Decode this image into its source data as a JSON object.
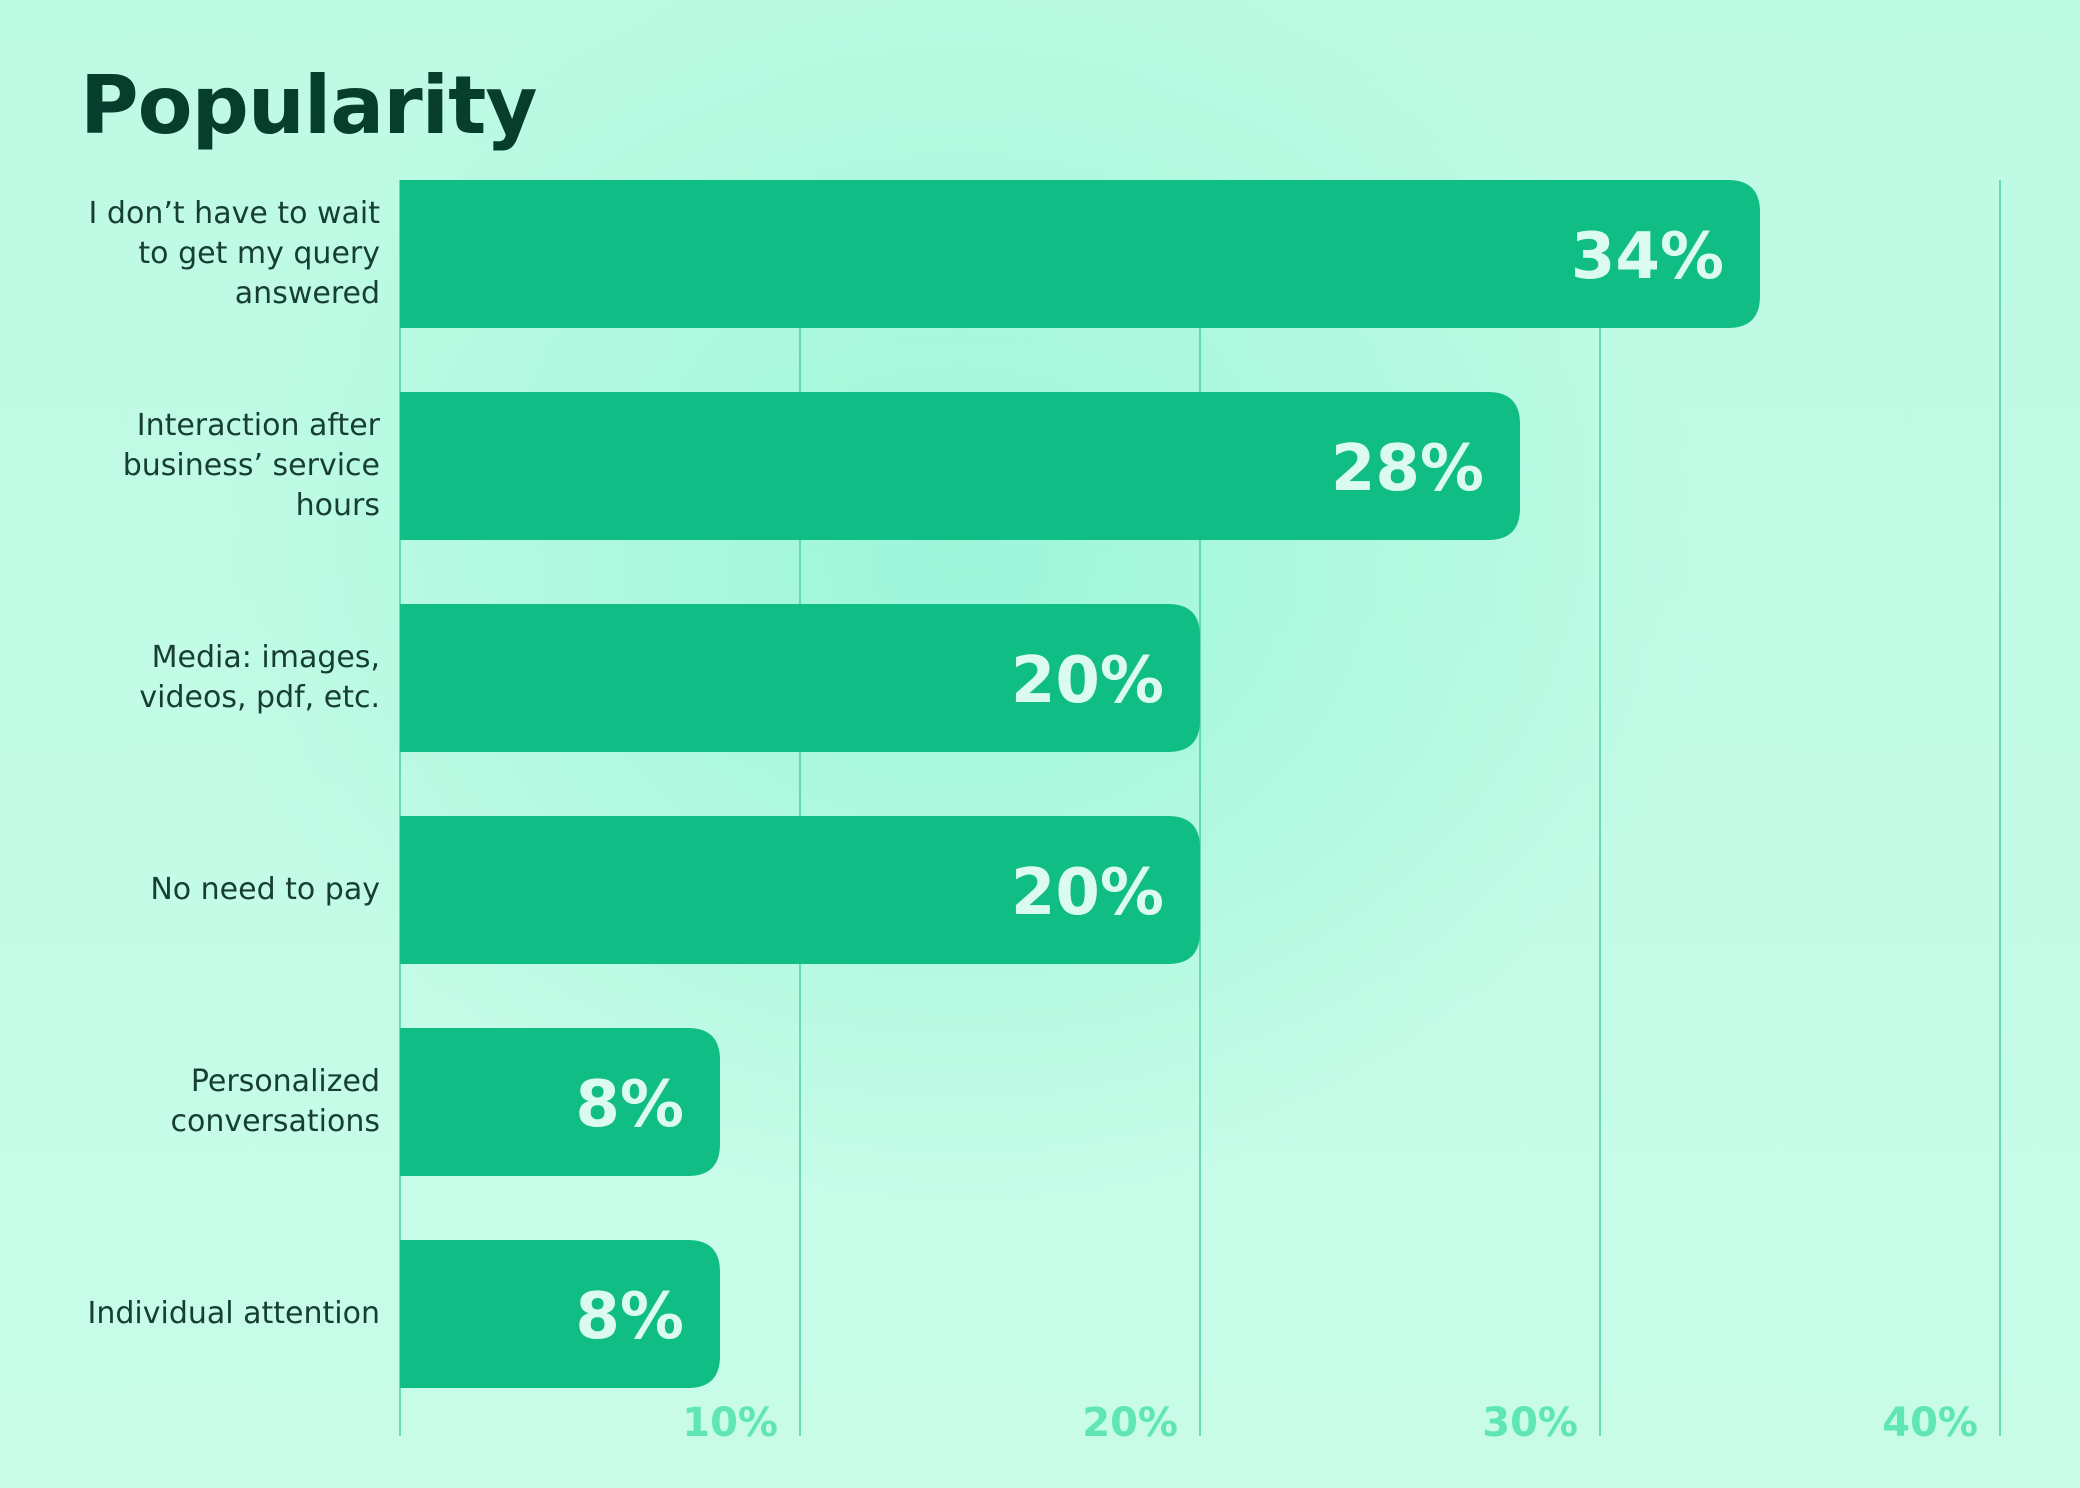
{
  "colors": {
    "bar": "#10bd84",
    "bar_label": "#dcfbf0",
    "gridline": "#4fcea3",
    "tick_label": "#5fe6b4",
    "title": "#073d2d",
    "category_text": "#173e33",
    "background": "#c3fbe6"
  },
  "chart_data": {
    "type": "bar",
    "orientation": "horizontal",
    "title": "Popularity",
    "categories": [
      "I don’t have to wait to get my query answered",
      "Interaction after business’ service hours",
      "Media: images, videos, pdf, etc.",
      "No need to pay",
      "Personalized conversations",
      "Individual attention"
    ],
    "values": [
      34,
      28,
      20,
      20,
      8,
      8
    ],
    "value_labels": [
      "34%",
      "28%",
      "20%",
      "20%",
      "8%",
      "8%"
    ],
    "xlim": [
      0,
      40
    ],
    "xticks": [
      10,
      20,
      30,
      40
    ],
    "xtick_labels": [
      "10%",
      "20%",
      "30%",
      "40%"
    ],
    "xlabel": "",
    "ylabel": "",
    "grid": "vertical",
    "legend": "none"
  }
}
